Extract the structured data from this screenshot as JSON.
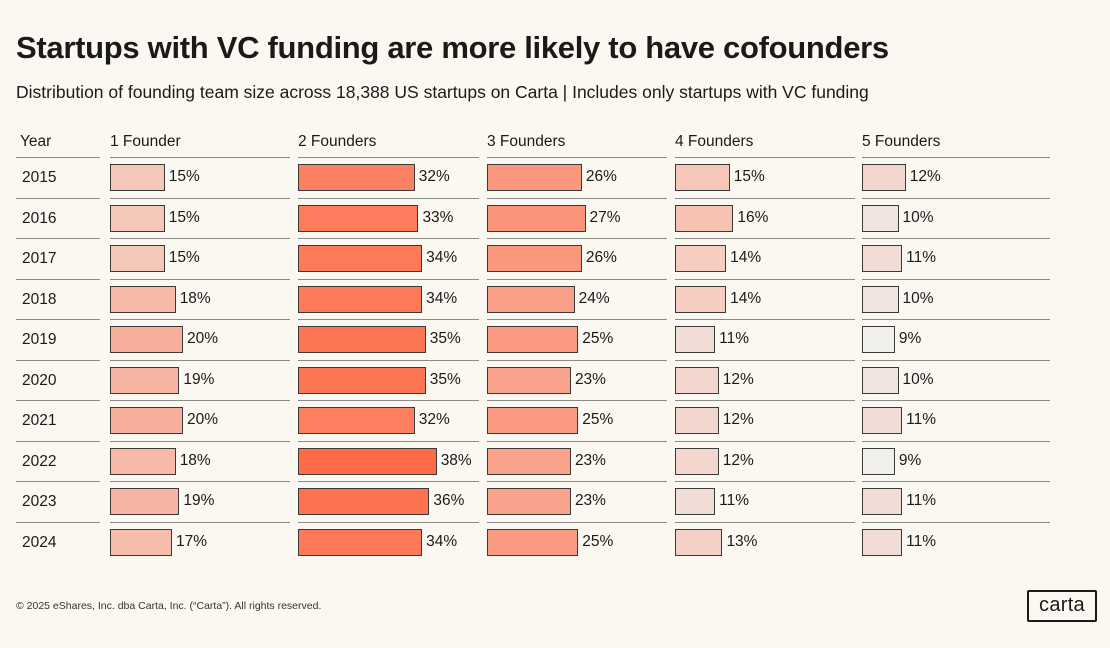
{
  "title": "Startups with VC funding are more likely to have cofounders",
  "subtitle": "Distribution of founding team size across 18,388 US startups on Carta | Includes only startups with VC funding",
  "footer": "© 2025 eShares, Inc. dba Carta, Inc. (“Carta”). All rights reserved.",
  "logo_text": "carta",
  "chart_data": {
    "type": "table",
    "row_header": "Year",
    "categories": [
      "2015",
      "2016",
      "2017",
      "2018",
      "2019",
      "2020",
      "2021",
      "2022",
      "2023",
      "2024"
    ],
    "series": [
      {
        "name": "1 Founder",
        "values": [
          15,
          15,
          15,
          18,
          20,
          19,
          20,
          18,
          19,
          17
        ]
      },
      {
        "name": "2 Founders",
        "values": [
          32,
          33,
          34,
          34,
          35,
          35,
          32,
          38,
          36,
          34
        ]
      },
      {
        "name": "3 Founders",
        "values": [
          26,
          27,
          26,
          24,
          25,
          23,
          25,
          23,
          23,
          25
        ]
      },
      {
        "name": "4 Founders",
        "values": [
          15,
          16,
          14,
          14,
          11,
          12,
          12,
          12,
          11,
          13
        ]
      },
      {
        "name": "5 Founders",
        "values": [
          12,
          10,
          11,
          10,
          9,
          10,
          11,
          9,
          11,
          11
        ]
      }
    ],
    "value_suffix": "%",
    "color_scale": {
      "low": "#f0efec",
      "high": "#ff6b47",
      "min": 9,
      "max": 38
    }
  }
}
